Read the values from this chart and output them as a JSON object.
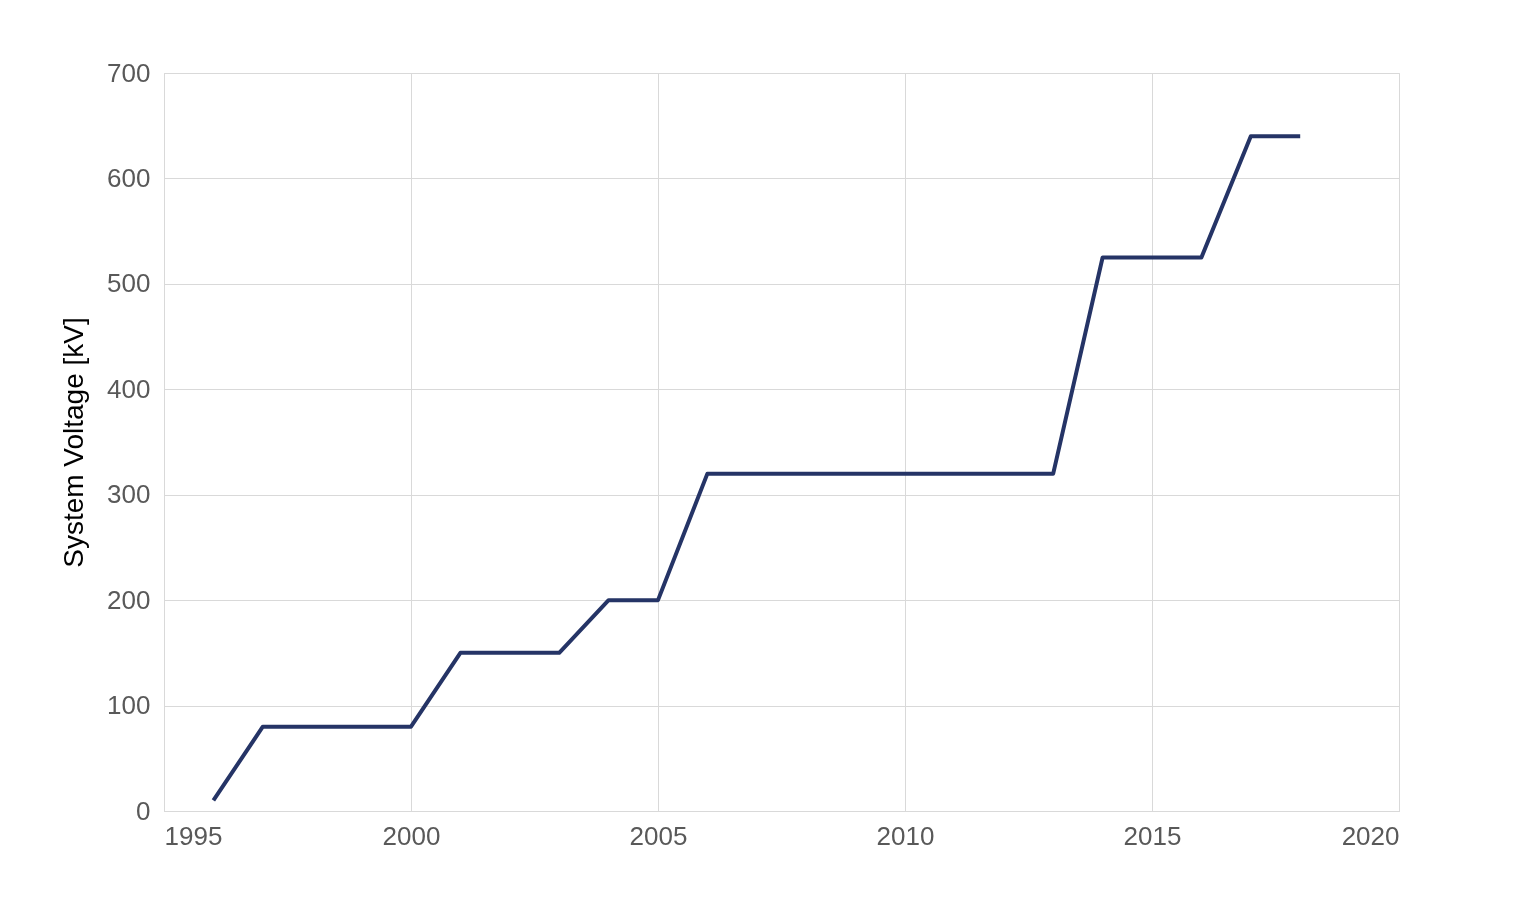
{
  "chart_data": {
    "type": "line",
    "ylabel": "System Voltage [kV]",
    "x": [
      1996,
      1997,
      1998,
      1999,
      2000,
      2001,
      2002,
      2003,
      2004,
      2005,
      2006,
      2007,
      2008,
      2009,
      2010,
      2011,
      2012,
      2013,
      2014,
      2015,
      2016,
      2017,
      2018
    ],
    "series": [
      {
        "color": "#253466",
        "values": [
          10,
          80,
          80,
          80,
          80,
          150,
          150,
          150,
          200,
          200,
          320,
          320,
          320,
          320,
          320,
          320,
          320,
          320,
          525,
          525,
          525,
          640,
          640
        ]
      }
    ],
    "xlim": [
      1995,
      2020
    ],
    "xticks": [
      1995,
      2000,
      2005,
      2010,
      2015,
      2020
    ],
    "ylim": [
      0,
      700
    ],
    "yticks": [
      0,
      100,
      200,
      300,
      400,
      500,
      600,
      700
    ],
    "grid": true,
    "legend": false,
    "marker": "none",
    "line_style": "solid"
  }
}
